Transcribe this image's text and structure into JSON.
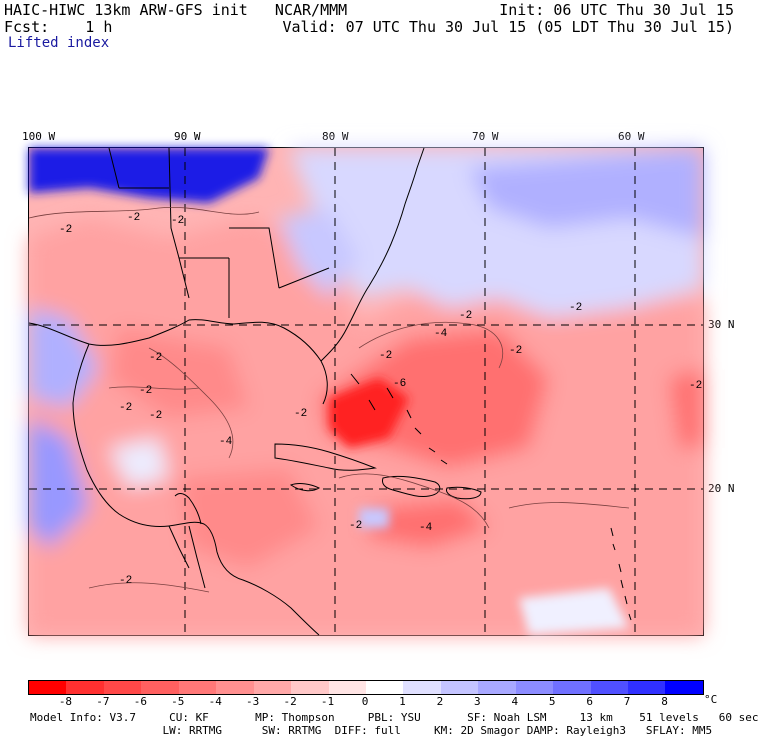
{
  "header": {
    "title": "HAIC-HIWC 13km ARW-GFS init   NCAR/MMM",
    "init": "Init: 06 UTC Thu 30 Jul 15",
    "fcst": "Fcst:    1 h",
    "valid": "Valid: 07 UTC Thu 30 Jul 15 (05 LDT Thu 30 Jul 15)",
    "field": "Lifted index"
  },
  "map": {
    "lon_labels": [
      "100 W",
      "90 W",
      "80 W",
      "70 W",
      "60 W"
    ],
    "lat_labels": [
      "30 N",
      "20 N"
    ],
    "contour_label": "-2",
    "contour_labels_extra": [
      "-4",
      "-6"
    ]
  },
  "colorbar": {
    "unit": "°C",
    "ticks": [
      "-8",
      "-7",
      "-6",
      "-5",
      "-4",
      "-3",
      "-2",
      "-1",
      "0",
      "1",
      "2",
      "3",
      "4",
      "5",
      "6",
      "7",
      "8"
    ],
    "colors": [
      "#ff0000",
      "#ff3030",
      "#ff4848",
      "#ff6060",
      "#ff7878",
      "#ff9090",
      "#ffa8a8",
      "#ffc8c8",
      "#ffe4e4",
      "#ffffff",
      "#e0e0ff",
      "#c4c4ff",
      "#a8a8ff",
      "#8c8cff",
      "#7070ff",
      "#5050ff",
      "#3030ff",
      "#0000ff"
    ]
  },
  "footer": {
    "line1": "Model Info: V3.7     CU: KF       MP: Thompson     PBL: YSU       SF: Noah LSM     13 km    51 levels   60 sec",
    "line2": "                    LW: RRTMG      SW: RRTMG  DIFF: full     KM: 2D Smagor DAMP: Rayleigh3   SFLAY: MM5"
  }
}
